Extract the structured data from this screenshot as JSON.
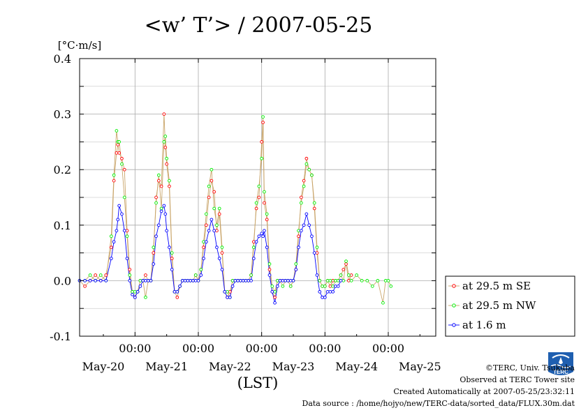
{
  "chart_data": {
    "type": "scatter",
    "title": "<w’ T’> / 2007-05-25",
    "yunit": "[°C·m/s]",
    "xlabel": "(LST)",
    "ylim": [
      -0.1,
      0.4
    ],
    "yticks": [
      "0.4",
      "0.3",
      "0.2",
      "0.1",
      "0.0",
      "-0.1"
    ],
    "xlim_hours": [
      -21,
      114
    ],
    "time_ticks": [
      "00:00",
      "00:00",
      "00:00",
      "00:00",
      "00:00"
    ],
    "date_ticks": [
      "May-20",
      "May-21",
      "May-22",
      "May-23",
      "May-24",
      "May-25"
    ],
    "grid": true,
    "legend_position": "right, lower",
    "series": [
      {
        "name": "at 29.5 m SE",
        "color": "#ff0000",
        "line_color": "#c9a56a",
        "points": [
          [
            -21,
            0.0
          ],
          [
            -19,
            -0.01
          ],
          [
            -17,
            0.0
          ],
          [
            -15,
            0.01
          ],
          [
            -13,
            0.0
          ],
          [
            -11,
            0.01
          ],
          [
            -9,
            0.06
          ],
          [
            -8,
            0.18
          ],
          [
            -7,
            0.23
          ],
          [
            -6.5,
            0.245
          ],
          [
            -6,
            0.23
          ],
          [
            -5,
            0.22
          ],
          [
            -4,
            0.2
          ],
          [
            -3,
            0.09
          ],
          [
            -2,
            0.02
          ],
          [
            -1,
            -0.02
          ],
          [
            0,
            -0.03
          ],
          [
            1,
            -0.02
          ],
          [
            2,
            0.0
          ],
          [
            3,
            0.0
          ],
          [
            4,
            0.01
          ],
          [
            5,
            0.0
          ],
          [
            6,
            0.0
          ],
          [
            7,
            0.05
          ],
          [
            8,
            0.15
          ],
          [
            9,
            0.18
          ],
          [
            10,
            0.17
          ],
          [
            11,
            0.3
          ],
          [
            11.5,
            0.24
          ],
          [
            12,
            0.21
          ],
          [
            13,
            0.17
          ],
          [
            14,
            0.04
          ],
          [
            15,
            -0.02
          ],
          [
            16,
            -0.03
          ],
          [
            17,
            -0.01
          ],
          [
            18,
            0.0
          ],
          [
            19,
            0.0
          ],
          [
            20,
            0.0
          ],
          [
            21,
            0.0
          ],
          [
            22,
            0.0
          ],
          [
            23,
            0.01
          ],
          [
            24,
            0.0
          ],
          [
            25,
            0.02
          ],
          [
            26,
            0.06
          ],
          [
            27,
            0.1
          ],
          [
            28,
            0.15
          ],
          [
            29,
            0.18
          ],
          [
            30,
            0.16
          ],
          [
            31,
            0.09
          ],
          [
            32,
            0.12
          ],
          [
            33,
            0.05
          ],
          [
            34,
            -0.02
          ],
          [
            35,
            -0.03
          ],
          [
            36,
            -0.02
          ],
          [
            37,
            0.0
          ],
          [
            38,
            0.0
          ],
          [
            39,
            0.0
          ],
          [
            40,
            0.0
          ],
          [
            41,
            0.0
          ],
          [
            42,
            0.0
          ],
          [
            43,
            0.0
          ],
          [
            44,
            0.01
          ],
          [
            45,
            0.07
          ],
          [
            46,
            0.13
          ],
          [
            47,
            0.15
          ],
          [
            48,
            0.25
          ],
          [
            48.5,
            0.285
          ],
          [
            49,
            0.14
          ],
          [
            50,
            0.11
          ],
          [
            51,
            0.02
          ],
          [
            52,
            -0.02
          ],
          [
            53,
            -0.03
          ],
          [
            54,
            0.0
          ],
          [
            55,
            0.0
          ],
          [
            56,
            0.0
          ],
          [
            57,
            0.0
          ],
          [
            58,
            0.0
          ],
          [
            59,
            -0.01
          ],
          [
            60,
            0.0
          ],
          [
            61,
            0.02
          ],
          [
            62,
            0.08
          ],
          [
            63,
            0.15
          ],
          [
            64,
            0.18
          ],
          [
            65,
            0.22
          ],
          [
            66,
            0.2
          ],
          [
            67,
            0.19
          ],
          [
            68,
            0.13
          ],
          [
            69,
            0.05
          ],
          [
            70,
            0.0
          ],
          [
            71,
            -0.01
          ],
          [
            72,
            -0.01
          ],
          [
            73,
            0.0
          ],
          [
            74,
            -0.01
          ],
          [
            75,
            0.0
          ],
          [
            76,
            0.0
          ],
          [
            77,
            0.0
          ],
          [
            78,
            0.01
          ],
          [
            79,
            0.02
          ],
          [
            80,
            0.03
          ],
          [
            81,
            0.0
          ],
          [
            82,
            0.01
          ]
        ]
      },
      {
        "name": "at 29.5 m NW",
        "color": "#00ee00",
        "line_color": "#c9a56a",
        "points": [
          [
            -21,
            0.0
          ],
          [
            -19,
            0.0
          ],
          [
            -17,
            0.01
          ],
          [
            -15,
            0.0
          ],
          [
            -13,
            0.01
          ],
          [
            -11,
            0.0
          ],
          [
            -9,
            0.08
          ],
          [
            -8,
            0.19
          ],
          [
            -7,
            0.27
          ],
          [
            -6.5,
            0.25
          ],
          [
            -6,
            0.25
          ],
          [
            -5,
            0.21
          ],
          [
            -4,
            0.15
          ],
          [
            -3,
            0.08
          ],
          [
            -2,
            0.01
          ],
          [
            -1,
            -0.02
          ],
          [
            0,
            -0.02
          ],
          [
            1,
            -0.02
          ],
          [
            2,
            0.0
          ],
          [
            3,
            0.0
          ],
          [
            4,
            -0.03
          ],
          [
            5,
            0.0
          ],
          [
            6,
            0.0
          ],
          [
            7,
            0.06
          ],
          [
            8,
            0.14
          ],
          [
            9,
            0.19
          ],
          [
            10,
            0.13
          ],
          [
            11,
            0.25
          ],
          [
            11.5,
            0.26
          ],
          [
            12,
            0.22
          ],
          [
            13,
            0.18
          ],
          [
            14,
            0.05
          ],
          [
            15,
            -0.02
          ],
          [
            16,
            -0.02
          ],
          [
            17,
            -0.01
          ],
          [
            18,
            0.0
          ],
          [
            19,
            0.0
          ],
          [
            20,
            0.0
          ],
          [
            21,
            0.0
          ],
          [
            22,
            0.0
          ],
          [
            23,
            0.01
          ],
          [
            24,
            0.0
          ],
          [
            25,
            0.02
          ],
          [
            26,
            0.07
          ],
          [
            27,
            0.12
          ],
          [
            28,
            0.17
          ],
          [
            29,
            0.2
          ],
          [
            30,
            0.13
          ],
          [
            31,
            0.1
          ],
          [
            32,
            0.13
          ],
          [
            33,
            0.06
          ],
          [
            34,
            -0.02
          ],
          [
            35,
            -0.02
          ],
          [
            36,
            -0.03
          ],
          [
            37,
            0.0
          ],
          [
            38,
            0.0
          ],
          [
            39,
            0.0
          ],
          [
            40,
            0.0
          ],
          [
            41,
            0.0
          ],
          [
            42,
            0.0
          ],
          [
            43,
            0.0
          ],
          [
            44,
            0.01
          ],
          [
            45,
            0.06
          ],
          [
            46,
            0.14
          ],
          [
            47,
            0.17
          ],
          [
            48,
            0.22
          ],
          [
            48.5,
            0.295
          ],
          [
            49,
            0.16
          ],
          [
            50,
            0.12
          ],
          [
            51,
            0.03
          ],
          [
            52,
            -0.01
          ],
          [
            53,
            -0.02
          ],
          [
            54,
            0.0
          ],
          [
            55,
            0.0
          ],
          [
            56,
            -0.01
          ],
          [
            57,
            0.0
          ],
          [
            58,
            0.0
          ],
          [
            59,
            -0.01
          ],
          [
            60,
            0.0
          ],
          [
            61,
            0.03
          ],
          [
            62,
            0.09
          ],
          [
            63,
            0.14
          ],
          [
            64,
            0.17
          ],
          [
            65,
            0.21
          ],
          [
            66,
            0.2
          ],
          [
            67,
            0.19
          ],
          [
            68,
            0.14
          ],
          [
            69,
            0.06
          ],
          [
            70,
            0.0
          ],
          [
            71,
            -0.01
          ],
          [
            72,
            -0.01
          ],
          [
            73,
            0.0
          ],
          [
            74,
            0.0
          ],
          [
            75,
            -0.01
          ],
          [
            76,
            0.0
          ],
          [
            77,
            0.0
          ],
          [
            78,
            0.01
          ],
          [
            79,
            0.0
          ],
          [
            80,
            0.035
          ],
          [
            81,
            0.01
          ],
          [
            82,
            0.0
          ],
          [
            84,
            0.01
          ],
          [
            86,
            0.0
          ],
          [
            88,
            0.0
          ],
          [
            90,
            -0.01
          ],
          [
            92,
            0.0
          ],
          [
            94,
            -0.04
          ],
          [
            95,
            0.0
          ],
          [
            96,
            0.0
          ],
          [
            97,
            -0.01
          ]
        ]
      },
      {
        "name": "at 1.6 m",
        "color": "#0000ff",
        "line_color": "#0000ff",
        "points": [
          [
            -21,
            0.0
          ],
          [
            -19,
            0.0
          ],
          [
            -17,
            0.0
          ],
          [
            -15,
            0.0
          ],
          [
            -13,
            0.0
          ],
          [
            -11,
            0.0
          ],
          [
            -9,
            0.04
          ],
          [
            -8,
            0.07
          ],
          [
            -7,
            0.09
          ],
          [
            -6.5,
            0.11
          ],
          [
            -6,
            0.135
          ],
          [
            -5,
            0.12
          ],
          [
            -4,
            0.09
          ],
          [
            -3,
            0.04
          ],
          [
            -2,
            0.0
          ],
          [
            -1,
            -0.025
          ],
          [
            0,
            -0.03
          ],
          [
            1,
            -0.02
          ],
          [
            2,
            -0.01
          ],
          [
            3,
            0.0
          ],
          [
            4,
            0.0
          ],
          [
            5,
            0.0
          ],
          [
            6,
            0.0
          ],
          [
            7,
            0.03
          ],
          [
            8,
            0.08
          ],
          [
            9,
            0.1
          ],
          [
            10,
            0.125
          ],
          [
            11,
            0.135
          ],
          [
            11.5,
            0.12
          ],
          [
            12,
            0.09
          ],
          [
            13,
            0.06
          ],
          [
            14,
            0.02
          ],
          [
            15,
            -0.02
          ],
          [
            16,
            -0.02
          ],
          [
            17,
            -0.01
          ],
          [
            18,
            0.0
          ],
          [
            19,
            0.0
          ],
          [
            20,
            0.0
          ],
          [
            21,
            0.0
          ],
          [
            22,
            0.0
          ],
          [
            23,
            0.0
          ],
          [
            24,
            0.0
          ],
          [
            25,
            0.01
          ],
          [
            26,
            0.04
          ],
          [
            27,
            0.07
          ],
          [
            28,
            0.09
          ],
          [
            29,
            0.11
          ],
          [
            30,
            0.09
          ],
          [
            31,
            0.06
          ],
          [
            32,
            0.04
          ],
          [
            33,
            0.02
          ],
          [
            34,
            -0.02
          ],
          [
            35,
            -0.03
          ],
          [
            36,
            -0.03
          ],
          [
            37,
            -0.01
          ],
          [
            38,
            0.0
          ],
          [
            39,
            0.0
          ],
          [
            40,
            0.0
          ],
          [
            41,
            0.0
          ],
          [
            42,
            0.0
          ],
          [
            43,
            0.0
          ],
          [
            44,
            0.0
          ],
          [
            45,
            0.04
          ],
          [
            46,
            0.07
          ],
          [
            47,
            0.08
          ],
          [
            48,
            0.085
          ],
          [
            48.5,
            0.08
          ],
          [
            49,
            0.09
          ],
          [
            50,
            0.06
          ],
          [
            51,
            0.01
          ],
          [
            52,
            -0.02
          ],
          [
            53,
            -0.04
          ],
          [
            54,
            -0.01
          ],
          [
            55,
            0.0
          ],
          [
            56,
            0.0
          ],
          [
            57,
            0.0
          ],
          [
            58,
            0.0
          ],
          [
            59,
            0.0
          ],
          [
            60,
            0.0
          ],
          [
            61,
            0.02
          ],
          [
            62,
            0.06
          ],
          [
            63,
            0.09
          ],
          [
            64,
            0.1
          ],
          [
            65,
            0.12
          ],
          [
            66,
            0.1
          ],
          [
            67,
            0.08
          ],
          [
            68,
            0.05
          ],
          [
            69,
            0.01
          ],
          [
            70,
            -0.02
          ],
          [
            71,
            -0.03
          ],
          [
            72,
            -0.03
          ],
          [
            73,
            -0.02
          ],
          [
            74,
            -0.02
          ],
          [
            75,
            -0.02
          ],
          [
            76,
            -0.01
          ],
          [
            77,
            -0.01
          ],
          [
            78,
            0.0
          ]
        ]
      }
    ]
  },
  "credits": {
    "copyright": "©TERC, Univ. Tsukuba",
    "observed": "Observed at TERC Tower site",
    "created": "Created Automatically at 2007-05-25/23:32:11",
    "source": "Data source : /home/hojyo/new/TERC-data/sorted_data/FLUX.30m.dat",
    "logo_text": "TERC"
  }
}
